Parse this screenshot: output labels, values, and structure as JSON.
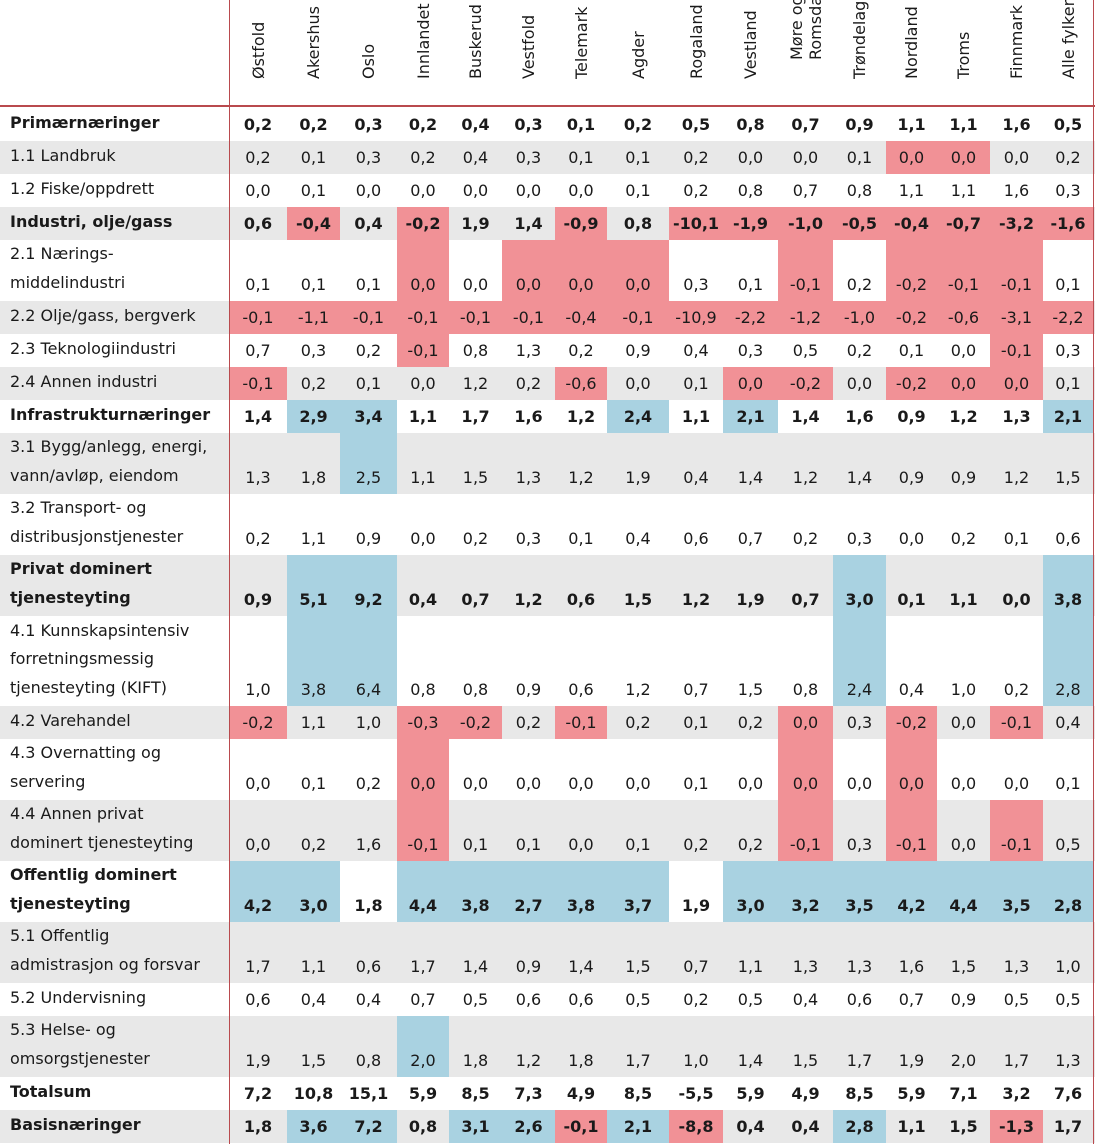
{
  "colors": {
    "negative": "#f19196",
    "positive": "#a9d2e1",
    "shade": "#e8e8e8",
    "rule": "#b94a4e"
  },
  "columns": [
    "Østfold",
    "Akershus",
    "Oslo",
    "Innlandet",
    "Buskerud",
    "Vestfold",
    "Telemark",
    "Agder",
    "Rogaland",
    "Vestland",
    "Møre og\nRomsdal",
    "Trøndelag",
    "Nordland",
    "Troms",
    "Finnmark",
    "Alle fylker"
  ],
  "rows": [
    {
      "label": "Primærnæringer",
      "bold": true,
      "shade": false,
      "values": [
        "0,2",
        "0,2",
        "0,3",
        "0,2",
        "0,4",
        "0,3",
        "0,1",
        "0,2",
        "0,5",
        "0,8",
        "0,7",
        "0,9",
        "1,1",
        "1,1",
        "1,6",
        "0,5"
      ],
      "hl": [
        "",
        "",
        "",
        "",
        "",
        "",
        "",
        "",
        "",
        "",
        "",
        "",
        "",
        "",
        "",
        ""
      ]
    },
    {
      "label": "1.1 Landbruk",
      "bold": false,
      "shade": true,
      "values": [
        "0,2",
        "0,1",
        "0,3",
        "0,2",
        "0,4",
        "0,3",
        "0,1",
        "0,1",
        "0,2",
        "0,0",
        "0,0",
        "0,1",
        "0,0",
        "0,0",
        "0,0",
        "0,2"
      ],
      "hl": [
        "",
        "",
        "",
        "",
        "",
        "",
        "",
        "",
        "",
        "",
        "",
        "",
        "n",
        "n",
        "",
        ""
      ]
    },
    {
      "label": "1.2 Fiske/oppdrett",
      "bold": false,
      "shade": false,
      "values": [
        "0,0",
        "0,1",
        "0,0",
        "0,0",
        "0,0",
        "0,0",
        "0,0",
        "0,1",
        "0,2",
        "0,8",
        "0,7",
        "0,8",
        "1,1",
        "1,1",
        "1,6",
        "0,3"
      ],
      "hl": [
        "",
        "",
        "",
        "",
        "",
        "",
        "",
        "",
        "",
        "",
        "",
        "",
        "",
        "",
        "",
        ""
      ]
    },
    {
      "label": "Industri, olje/gass",
      "bold": true,
      "shade": true,
      "values": [
        "0,6",
        "-0,4",
        "0,4",
        "-0,2",
        "1,9",
        "1,4",
        "-0,9",
        "0,8",
        "-10,1",
        "-1,9",
        "-1,0",
        "-0,5",
        "-0,4",
        "-0,7",
        "-3,2",
        "-1,6"
      ],
      "hl": [
        "",
        "n",
        "",
        "n",
        "",
        "",
        "n",
        "",
        "n",
        "n",
        "n",
        "n",
        "n",
        "n",
        "n",
        "n"
      ]
    },
    {
      "label": "2.1 Nærings-\nmiddelindustri",
      "bold": false,
      "shade": false,
      "values": [
        "0,1",
        "0,1",
        "0,1",
        "0,0",
        "0,0",
        "0,0",
        "0,0",
        "0,0",
        "0,3",
        "0,1",
        "-0,1",
        "0,2",
        "-0,2",
        "-0,1",
        "-0,1",
        "0,1"
      ],
      "hl": [
        "",
        "",
        "",
        "n",
        "",
        "n",
        "n",
        "n",
        "",
        "",
        "n",
        "",
        "n",
        "n",
        "n",
        ""
      ]
    },
    {
      "label": "2.2 Olje/gass, bergverk",
      "bold": false,
      "shade": true,
      "values": [
        "-0,1",
        "-1,1",
        "-0,1",
        "-0,1",
        "-0,1",
        "-0,1",
        "-0,4",
        "-0,1",
        "-10,9",
        "-2,2",
        "-1,2",
        "-1,0",
        "-0,2",
        "-0,6",
        "-3,1",
        "-2,2"
      ],
      "hl": [
        "n",
        "n",
        "n",
        "n",
        "n",
        "n",
        "n",
        "n",
        "n",
        "n",
        "n",
        "n",
        "n",
        "n",
        "n",
        "n"
      ]
    },
    {
      "label": "2.3 Teknologiindustri",
      "bold": false,
      "shade": false,
      "values": [
        "0,7",
        "0,3",
        "0,2",
        "-0,1",
        "0,8",
        "1,3",
        "0,2",
        "0,9",
        "0,4",
        "0,3",
        "0,5",
        "0,2",
        "0,1",
        "0,0",
        "-0,1",
        "0,3"
      ],
      "hl": [
        "",
        "",
        "",
        "n",
        "",
        "",
        "",
        "",
        "",
        "",
        "",
        "",
        "",
        "",
        "n",
        ""
      ]
    },
    {
      "label": "2.4 Annen industri",
      "bold": false,
      "shade": true,
      "values": [
        "-0,1",
        "0,2",
        "0,1",
        "0,0",
        "1,2",
        "0,2",
        "-0,6",
        "0,0",
        "0,1",
        "0,0",
        "-0,2",
        "0,0",
        "-0,2",
        "0,0",
        "0,0",
        "0,1"
      ],
      "hl": [
        "n",
        "",
        "",
        "",
        "",
        "",
        "n",
        "",
        "",
        "n",
        "n",
        "",
        "n",
        "n",
        "n",
        ""
      ]
    },
    {
      "label": "Infrastrukturnæringer",
      "bold": true,
      "shade": false,
      "values": [
        "1,4",
        "2,9",
        "3,4",
        "1,1",
        "1,7",
        "1,6",
        "1,2",
        "2,4",
        "1,1",
        "2,1",
        "1,4",
        "1,6",
        "0,9",
        "1,2",
        "1,3",
        "2,1"
      ],
      "hl": [
        "",
        "p",
        "p",
        "",
        "",
        "",
        "",
        "p",
        "",
        "p",
        "",
        "",
        "",
        "",
        "",
        "p"
      ]
    },
    {
      "label": "3.1 Bygg/anlegg, energi,\nvann/avløp, eiendom",
      "bold": false,
      "shade": true,
      "values": [
        "1,3",
        "1,8",
        "2,5",
        "1,1",
        "1,5",
        "1,3",
        "1,2",
        "1,9",
        "0,4",
        "1,4",
        "1,2",
        "1,4",
        "0,9",
        "0,9",
        "1,2",
        "1,5"
      ],
      "hl": [
        "",
        "",
        "p",
        "",
        "",
        "",
        "",
        "",
        "",
        "",
        "",
        "",
        "",
        "",
        "",
        ""
      ]
    },
    {
      "label": "3.2 Transport- og\ndistribusjonstjenester",
      "bold": false,
      "shade": false,
      "values": [
        "0,2",
        "1,1",
        "0,9",
        "0,0",
        "0,2",
        "0,3",
        "0,1",
        "0,4",
        "0,6",
        "0,7",
        "0,2",
        "0,3",
        "0,0",
        "0,2",
        "0,1",
        "0,6"
      ],
      "hl": [
        "",
        "",
        "",
        "",
        "",
        "",
        "",
        "",
        "",
        "",
        "",
        "",
        "",
        "",
        "",
        ""
      ]
    },
    {
      "label": "Privat dominert\ntjenesteyting",
      "bold": true,
      "shade": true,
      "values": [
        "0,9",
        "5,1",
        "9,2",
        "0,4",
        "0,7",
        "1,2",
        "0,6",
        "1,5",
        "1,2",
        "1,9",
        "0,7",
        "3,0",
        "0,1",
        "1,1",
        "0,0",
        "3,8"
      ],
      "hl": [
        "",
        "p",
        "p",
        "",
        "",
        "",
        "",
        "",
        "",
        "",
        "",
        "p",
        "",
        "",
        "",
        "p"
      ]
    },
    {
      "label": "4.1 Kunnskapsintensiv\nforretningsmessig\ntjenesteyting (KIFT)",
      "bold": false,
      "shade": false,
      "values": [
        "1,0",
        "3,8",
        "6,4",
        "0,8",
        "0,8",
        "0,9",
        "0,6",
        "1,2",
        "0,7",
        "1,5",
        "0,8",
        "2,4",
        "0,4",
        "1,0",
        "0,2",
        "2,8"
      ],
      "hl": [
        "",
        "p",
        "p",
        "",
        "",
        "",
        "",
        "",
        "",
        "",
        "",
        "p",
        "",
        "",
        "",
        "p"
      ]
    },
    {
      "label": "4.2 Varehandel",
      "bold": false,
      "shade": true,
      "values": [
        "-0,2",
        "1,1",
        "1,0",
        "-0,3",
        "-0,2",
        "0,2",
        "-0,1",
        "0,2",
        "0,1",
        "0,2",
        "0,0",
        "0,3",
        "-0,2",
        "0,0",
        "-0,1",
        "0,4"
      ],
      "hl": [
        "n",
        "",
        "",
        "n",
        "n",
        "",
        "n",
        "",
        "",
        "",
        "n",
        "",
        "n",
        "",
        "n",
        ""
      ]
    },
    {
      "label": "4.3 Overnatting og\nservering",
      "bold": false,
      "shade": false,
      "values": [
        "0,0",
        "0,1",
        "0,2",
        "0,0",
        "0,0",
        "0,0",
        "0,0",
        "0,0",
        "0,1",
        "0,0",
        "0,0",
        "0,0",
        "0,0",
        "0,0",
        "0,0",
        "0,1"
      ],
      "hl": [
        "",
        "",
        "",
        "n",
        "",
        "",
        "",
        "",
        "",
        "",
        "n",
        "",
        "n",
        "",
        "",
        ""
      ]
    },
    {
      "label": "4.4 Annen privat\ndominert tjenesteyting",
      "bold": false,
      "shade": true,
      "values": [
        "0,0",
        "0,2",
        "1,6",
        "-0,1",
        "0,1",
        "0,1",
        "0,0",
        "0,1",
        "0,2",
        "0,2",
        "-0,1",
        "0,3",
        "-0,1",
        "0,0",
        "-0,1",
        "0,5"
      ],
      "hl": [
        "",
        "",
        "",
        "n",
        "",
        "",
        "",
        "",
        "",
        "",
        "n",
        "",
        "n",
        "",
        "n",
        ""
      ]
    },
    {
      "label": "Offentlig dominert\ntjenesteyting",
      "bold": true,
      "shade": false,
      "values": [
        "4,2",
        "3,0",
        "1,8",
        "4,4",
        "3,8",
        "2,7",
        "3,8",
        "3,7",
        "1,9",
        "3,0",
        "3,2",
        "3,5",
        "4,2",
        "4,4",
        "3,5",
        "2,8"
      ],
      "hl": [
        "p",
        "p",
        "",
        "p",
        "p",
        "p",
        "p",
        "p",
        "",
        "p",
        "p",
        "p",
        "p",
        "p",
        "p",
        "p"
      ]
    },
    {
      "label": "5.1 Offentlig\nadmistrasjon og forsvar",
      "bold": false,
      "shade": true,
      "values": [
        "1,7",
        "1,1",
        "0,6",
        "1,7",
        "1,4",
        "0,9",
        "1,4",
        "1,5",
        "0,7",
        "1,1",
        "1,3",
        "1,3",
        "1,6",
        "1,5",
        "1,3",
        "1,0"
      ],
      "hl": [
        "",
        "",
        "",
        "",
        "",
        "",
        "",
        "",
        "",
        "",
        "",
        "",
        "",
        "",
        "",
        ""
      ]
    },
    {
      "label": "5.2 Undervisning",
      "bold": false,
      "shade": false,
      "values": [
        "0,6",
        "0,4",
        "0,4",
        "0,7",
        "0,5",
        "0,6",
        "0,6",
        "0,5",
        "0,2",
        "0,5",
        "0,4",
        "0,6",
        "0,7",
        "0,9",
        "0,5",
        "0,5"
      ],
      "hl": [
        "",
        "",
        "",
        "",
        "",
        "",
        "",
        "",
        "",
        "",
        "",
        "",
        "",
        "",
        "",
        ""
      ]
    },
    {
      "label": "5.3 Helse- og\nomsorgstjenester",
      "bold": false,
      "shade": true,
      "values": [
        "1,9",
        "1,5",
        "0,8",
        "2,0",
        "1,8",
        "1,2",
        "1,8",
        "1,7",
        "1,0",
        "1,4",
        "1,5",
        "1,7",
        "1,9",
        "2,0",
        "1,7",
        "1,3"
      ],
      "hl": [
        "",
        "",
        "",
        "p",
        "",
        "",
        "",
        "",
        "",
        "",
        "",
        "",
        "",
        "",
        "",
        ""
      ]
    },
    {
      "label": "Totalsum",
      "bold": true,
      "shade": false,
      "values": [
        "7,2",
        "10,8",
        "15,1",
        "5,9",
        "8,5",
        "7,3",
        "4,9",
        "8,5",
        "-5,5",
        "5,9",
        "4,9",
        "8,5",
        "5,9",
        "7,1",
        "3,2",
        "7,6"
      ],
      "hl": [
        "",
        "",
        "",
        "",
        "",
        "",
        "",
        "",
        "",
        "",
        "",
        "",
        "",
        "",
        "",
        ""
      ]
    },
    {
      "label": "Basisnæringer",
      "bold": true,
      "shade": true,
      "values": [
        "1,8",
        "3,6",
        "7,2",
        "0,8",
        "3,1",
        "2,6",
        "-0,1",
        "2,1",
        "-8,8",
        "0,4",
        "0,4",
        "2,8",
        "1,1",
        "1,5",
        "-1,3",
        "1,7"
      ],
      "hl": [
        "",
        "p",
        "p",
        "",
        "p",
        "p",
        "n",
        "p",
        "n",
        "",
        "",
        "p",
        "",
        "",
        "n",
        ""
      ]
    }
  ]
}
